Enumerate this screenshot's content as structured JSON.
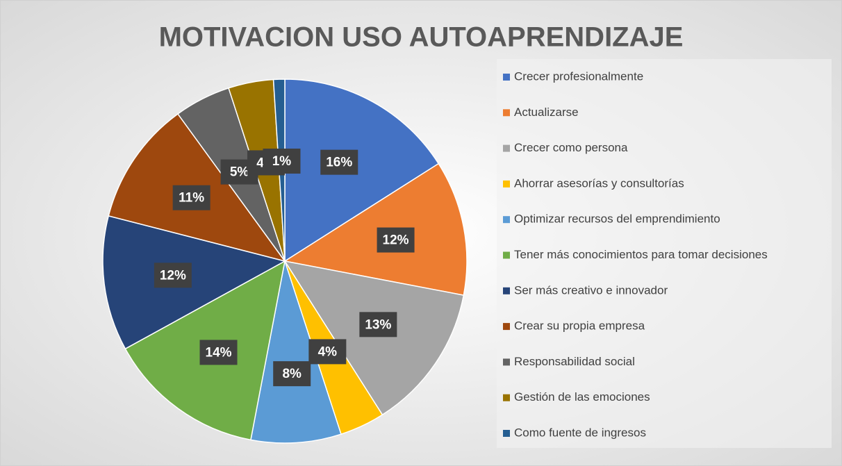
{
  "chart_data": {
    "type": "pie",
    "title": "MOTIVACION USO AUTOAPRENDIZAJE",
    "categories": [
      "Crecer profesionalmente",
      "Actualizarse",
      "Crecer como persona",
      "Ahorrar asesorías y consultorías",
      "Optimizar recursos del emprendimiento",
      "Tener más conocimientos para tomar decisiones",
      "Ser más creativo e innovador",
      "Crear su propia empresa",
      "Responsabilidad social",
      "Gestión de las emociones",
      "Como fuente de ingresos"
    ],
    "values": [
      16,
      12,
      13,
      4,
      8,
      14,
      12,
      11,
      5,
      4,
      1
    ],
    "value_labels": [
      "16%",
      "12%",
      "13%",
      "4%",
      "8%",
      "14%",
      "12%",
      "11%",
      "5%",
      "4%",
      "1%"
    ],
    "colors": [
      "#4472c4",
      "#ed7d31",
      "#a5a5a5",
      "#ffc000",
      "#5b9bd5",
      "#70ad47",
      "#264478",
      "#9e480e",
      "#636363",
      "#997300",
      "#255e91"
    ],
    "legend": "right"
  }
}
